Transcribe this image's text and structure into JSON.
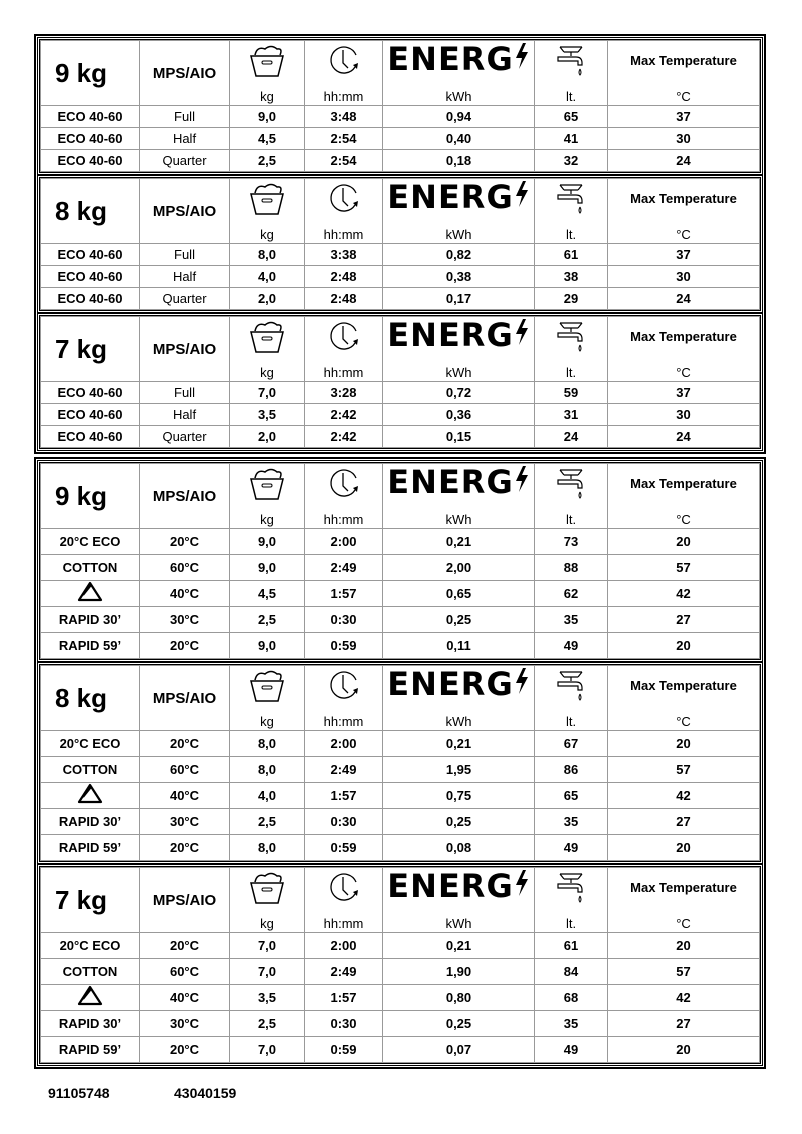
{
  "header": {
    "units": [
      "kg",
      "hh:mm",
      "kWh",
      "lt."
    ],
    "max_temp_label": "Max Temperature",
    "max_temp_unit": "°C",
    "energy_logo": "ENERG",
    "program_type": "MPS/AIO",
    "icons": [
      "laundry-basket-icon",
      "clock-icon",
      "energy-bolt-icon",
      "water-tap-icon"
    ]
  },
  "sections": [
    {
      "blocks": [
        {
          "capacity": "9 kg",
          "rows": [
            [
              "ECO 40-60",
              "Full",
              "9,0",
              "3:48",
              "0,94",
              "65",
              "37"
            ],
            [
              "ECO 40-60",
              "Half",
              "4,5",
              "2:54",
              "0,40",
              "41",
              "30"
            ],
            [
              "ECO 40-60",
              "Quarter",
              "2,5",
              "2:54",
              "0,18",
              "32",
              "24"
            ]
          ]
        },
        {
          "capacity": "8 kg",
          "rows": [
            [
              "ECO 40-60",
              "Full",
              "8,0",
              "3:38",
              "0,82",
              "61",
              "37"
            ],
            [
              "ECO 40-60",
              "Half",
              "4,0",
              "2:48",
              "0,38",
              "38",
              "30"
            ],
            [
              "ECO 40-60",
              "Quarter",
              "2,0",
              "2:48",
              "0,17",
              "29",
              "24"
            ]
          ]
        },
        {
          "capacity": "7 kg",
          "rows": [
            [
              "ECO 40-60",
              "Full",
              "7,0",
              "3:28",
              "0,72",
              "59",
              "37"
            ],
            [
              "ECO 40-60",
              "Half",
              "3,5",
              "2:42",
              "0,36",
              "31",
              "30"
            ],
            [
              "ECO 40-60",
              "Quarter",
              "2,0",
              "2:42",
              "0,15",
              "24",
              "24"
            ]
          ]
        }
      ]
    },
    {
      "blocks": [
        {
          "capacity": "9 kg",
          "rows": [
            [
              "20°C ECO",
              "20°C",
              "9,0",
              "2:00",
              "0,21",
              "73",
              "20"
            ],
            [
              "COTTON",
              "60°C",
              "9,0",
              "2:49",
              "2,00",
              "88",
              "57"
            ],
            [
              "",
              "40°C",
              "4,5",
              "1:57",
              "0,65",
              "62",
              "42"
            ],
            [
              "RAPID 30’",
              "30°C",
              "2,5",
              "0:30",
              "0,25",
              "35",
              "27"
            ],
            [
              "RAPID 59’",
              "20°C",
              "9,0",
              "0:59",
              "0,11",
              "49",
              "20"
            ]
          ]
        },
        {
          "capacity": "8 kg",
          "rows": [
            [
              "20°C ECO",
              "20°C",
              "8,0",
              "2:00",
              "0,21",
              "67",
              "20"
            ],
            [
              "COTTON",
              "60°C",
              "8,0",
              "2:49",
              "1,95",
              "86",
              "57"
            ],
            [
              "",
              "40°C",
              "4,0",
              "1:57",
              "0,75",
              "65",
              "42"
            ],
            [
              "RAPID 30’",
              "30°C",
              "2,5",
              "0:30",
              "0,25",
              "35",
              "27"
            ],
            [
              "RAPID 59’",
              "20°C",
              "8,0",
              "0:59",
              "0,08",
              "49",
              "20"
            ]
          ]
        },
        {
          "capacity": "7 kg",
          "rows": [
            [
              "20°C ECO",
              "20°C",
              "7,0",
              "2:00",
              "0,21",
              "61",
              "20"
            ],
            [
              "COTTON",
              "60°C",
              "7,0",
              "2:49",
              "1,90",
              "84",
              "57"
            ],
            [
              "",
              "40°C",
              "3,5",
              "1:57",
              "0,80",
              "68",
              "42"
            ],
            [
              "RAPID 30’",
              "30°C",
              "2,5",
              "0:30",
              "0,25",
              "35",
              "27"
            ],
            [
              "RAPID 59’",
              "20°C",
              "7,0",
              "0:59",
              "0,07",
              "49",
              "20"
            ]
          ]
        }
      ]
    }
  ],
  "row_icon": "synthetics-triangle-icon",
  "footer": {
    "code1": "91105748",
    "code2": "43040159"
  }
}
